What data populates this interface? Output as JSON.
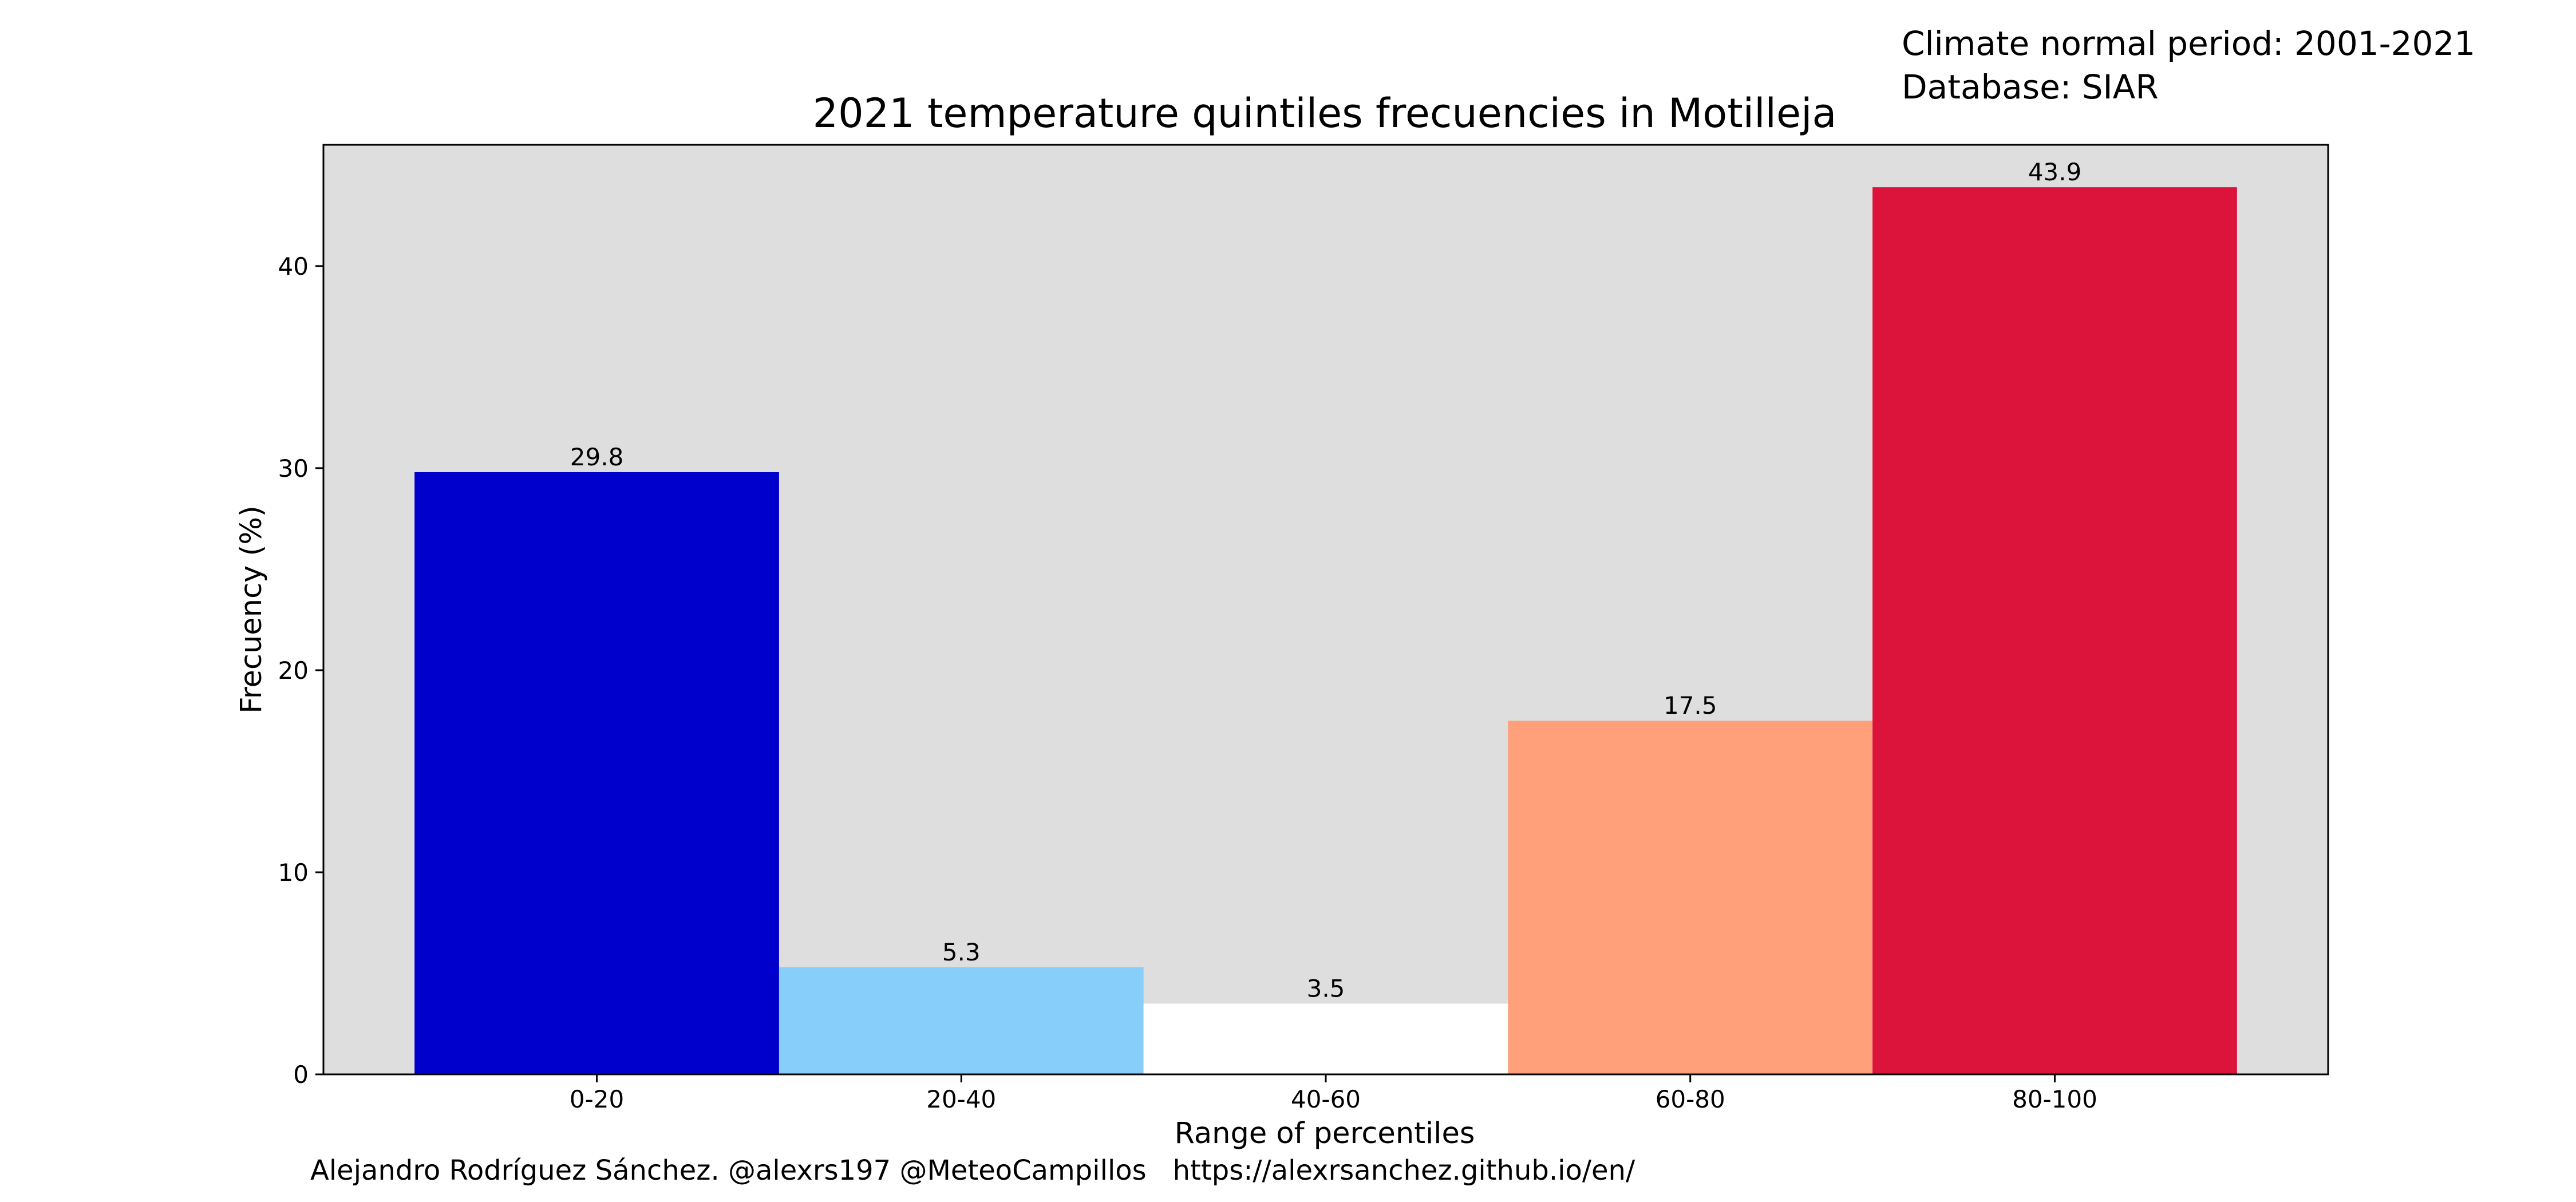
{
  "header": {
    "period_line": "Climate normal period: 2001-2021",
    "database_line": "Database: SIAR"
  },
  "footer": {
    "author": "Alejandro Rodríguez Sánchez. @alexrs197 @MeteoCampillos",
    "url": "https://alexrsanchez.github.io/en/"
  },
  "chart_data": {
    "type": "bar",
    "title": "2021 temperature quintiles frecuencies in Motilleja",
    "xlabel": "Range of percentiles",
    "ylabel": "Frecuency (%)",
    "categories": [
      "0-20",
      "20-40",
      "40-60",
      "60-80",
      "80-100"
    ],
    "values": [
      29.8,
      5.3,
      3.5,
      17.5,
      43.9
    ],
    "value_labels": [
      "29.8",
      "5.3",
      "3.5",
      "17.5",
      "43.9"
    ],
    "bar_colors": [
      "#0000cd",
      "#87cefa",
      "#ffffff",
      "#ffa07a",
      "#dc143c"
    ],
    "ylim": [
      0,
      46
    ],
    "yticks": [
      0,
      10,
      20,
      30,
      40
    ],
    "plot_background": "#dedede",
    "grid": false,
    "legend": "none"
  }
}
